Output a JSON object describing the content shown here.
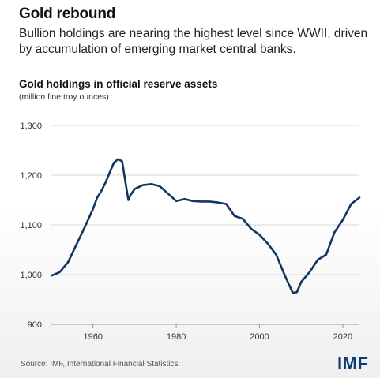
{
  "header": {
    "title": "Gold rebound",
    "subtitle": "Bullion holdings are nearing the highest level since WWII, driven by accumulation of emerging market central banks."
  },
  "chart": {
    "title": "Gold holdings in official reserve assets",
    "unit": "(million fine troy ounces)"
  },
  "footer": {
    "source": "Source: IMF, International Financial Statistics.",
    "logo": "IMF"
  },
  "colors": {
    "line": "#12355e",
    "grid": "#d7d7d7",
    "logo": "#0b3c75"
  },
  "chart_data": {
    "type": "line",
    "title": "Gold holdings in official reserve assets",
    "ylabel": "(million fine troy ounces)",
    "xlabel": "",
    "xlim": [
      1950,
      2024
    ],
    "ylim": [
      900,
      1300
    ],
    "yticks": [
      900,
      1000,
      1100,
      1200,
      1300
    ],
    "ytick_labels": [
      "900",
      "1,000",
      "1,100",
      "1,200",
      "1,300"
    ],
    "xticks": [
      1960,
      1980,
      2000,
      2020
    ],
    "xtick_labels": [
      "1960",
      "1980",
      "2000",
      "2020"
    ],
    "grid": true,
    "legend": "none",
    "series": [
      {
        "x": [
          1950,
          1952,
          1954,
          1956,
          1958,
          1960,
          1961,
          1962,
          1963,
          1964,
          1965,
          1966,
          1967,
          1968,
          1968.5,
          1969,
          1970,
          1972,
          1974,
          1976,
          1978,
          1980,
          1982,
          1984,
          1986,
          1988,
          1990,
          1992,
          1993,
          1994,
          1996,
          1998,
          2000,
          2002,
          2004,
          2006,
          2008,
          2009,
          2010,
          2012,
          2014,
          2016,
          2018,
          2020,
          2022,
          2024
        ],
        "y": [
          998,
          1005,
          1025,
          1060,
          1095,
          1132,
          1155,
          1168,
          1185,
          1205,
          1225,
          1232,
          1228,
          1175,
          1150,
          1160,
          1172,
          1180,
          1182,
          1178,
          1163,
          1148,
          1152,
          1148,
          1147,
          1147,
          1145,
          1142,
          1130,
          1118,
          1112,
          1092,
          1080,
          1062,
          1040,
          1000,
          963,
          965,
          985,
          1005,
          1030,
          1040,
          1085,
          1110,
          1142,
          1155
        ]
      }
    ]
  }
}
